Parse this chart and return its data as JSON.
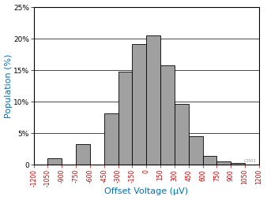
{
  "bar_edges": [
    -1200,
    -1050,
    -900,
    -750,
    -600,
    -450,
    -300,
    -150,
    0,
    150,
    300,
    450,
    600,
    750,
    900,
    1050,
    1200
  ],
  "bar_heights": [
    0,
    1.0,
    0,
    3.3,
    0,
    8.2,
    14.8,
    19.2,
    20.5,
    15.8,
    9.6,
    4.5,
    1.4,
    0.6,
    0.3,
    0
  ],
  "bar_color": "#a0a0a0",
  "bar_edgecolor": "#000000",
  "xticks": [
    -1200,
    -1050,
    -900,
    -750,
    -600,
    -450,
    -300,
    -150,
    0,
    150,
    300,
    450,
    600,
    750,
    900,
    1050,
    1200
  ],
  "xtick_labels": [
    "-1200",
    "-1050",
    "-900",
    "-750",
    "-600",
    "-450",
    "-300",
    "-150",
    "0",
    "150",
    "300",
    "450",
    "600",
    "750",
    "900",
    "1050",
    "1200"
  ],
  "yticks": [
    0,
    5,
    10,
    15,
    20,
    25
  ],
  "ytick_labels": [
    "0",
    "5%",
    "10%",
    "15%",
    "20%",
    "25%"
  ],
  "xlim": [
    -1200,
    1200
  ],
  "ylim": [
    0,
    25
  ],
  "xlabel": "Offset Voltage (μV)",
  "ylabel": "Population (%)",
  "xlabel_color": "#0070c0",
  "ylabel_color": "#0070c0",
  "xlabel_fontsize": 8,
  "ylabel_fontsize": 8,
  "xtick_fontsize": 5.5,
  "ytick_fontsize": 6.5,
  "xtick_color": "#cc0000",
  "ytick_color": "#000000",
  "grid_color": "#000000",
  "grid_linewidth": 0.5,
  "watermark": "C001",
  "watermark_color": "#999999",
  "background_color": "#ffffff",
  "spine_color": "#000000"
}
